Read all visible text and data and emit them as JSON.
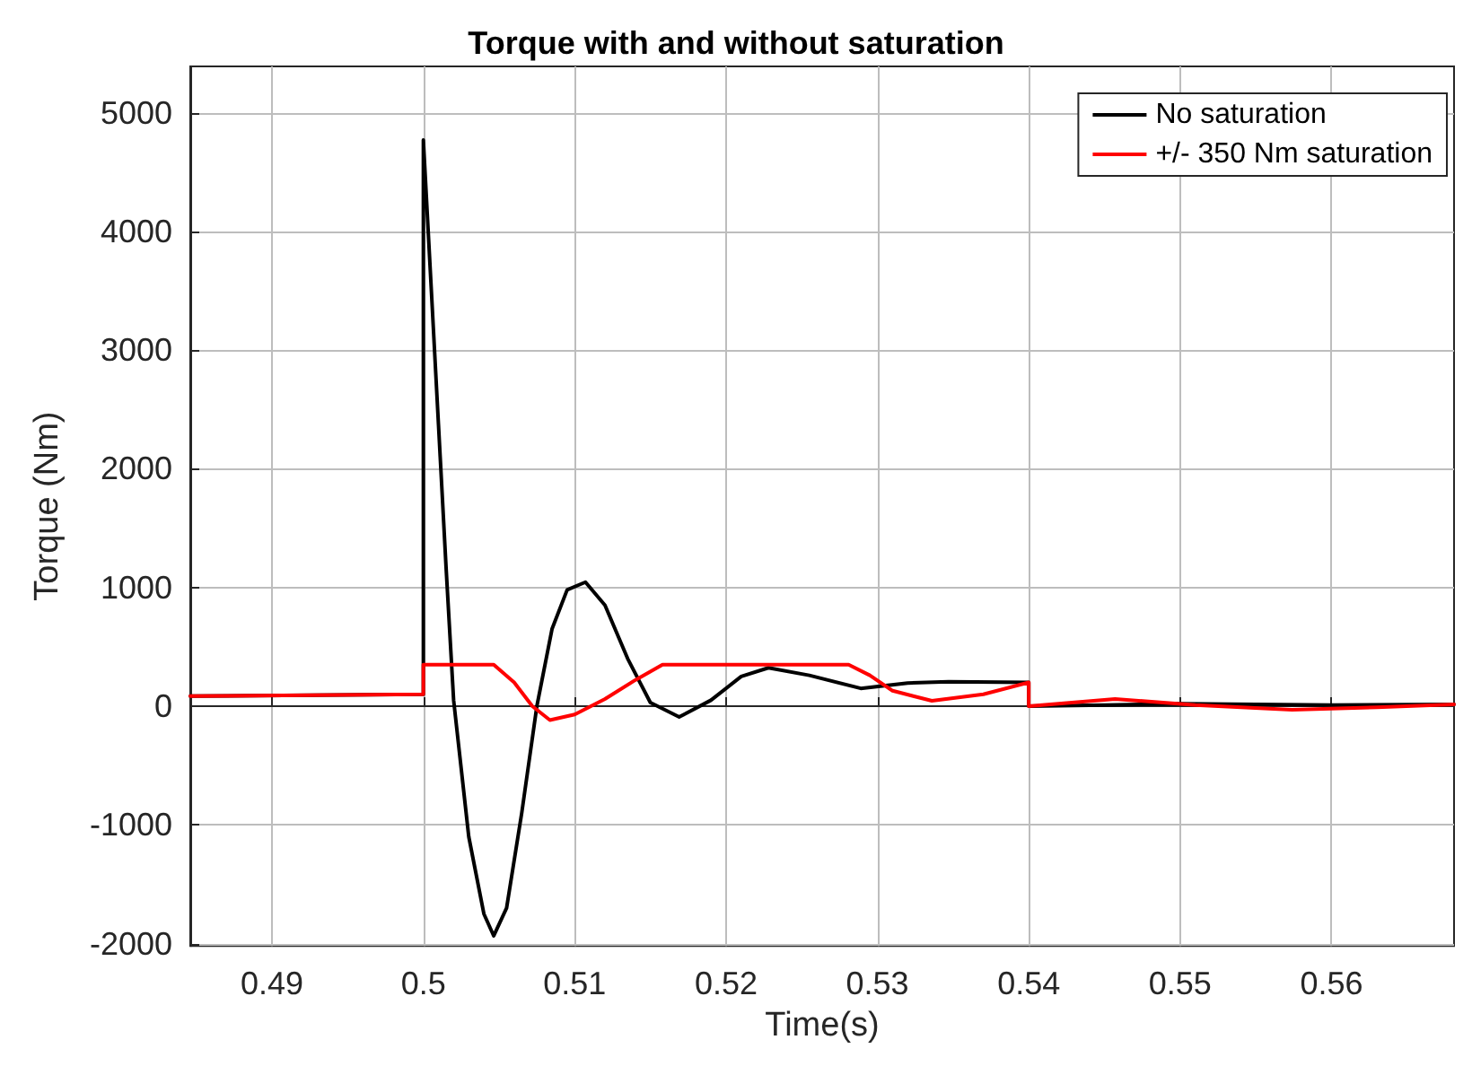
{
  "chart_data": {
    "type": "line",
    "title": "Torque with and without saturation",
    "xlabel": "Time(s)",
    "ylabel": "Torque (Nm)",
    "xlim": [
      0.4846,
      0.5681
    ],
    "ylim": [
      -2020,
      5390
    ],
    "xticks": [
      0.49,
      0.5,
      0.51,
      0.52,
      0.53,
      0.54,
      0.55,
      0.56
    ],
    "yticks": [
      -2000,
      -1000,
      0,
      1000,
      2000,
      3000,
      4000,
      5000
    ],
    "grid": true,
    "legend": "top right",
    "marker": "none",
    "line_style": "solid",
    "series": [
      {
        "name": "No saturation",
        "color": "#000000",
        "x": [
          0.4846,
          0.5,
          0.5,
          0.5005,
          0.501,
          0.5015,
          0.502,
          0.503,
          0.504,
          0.50465,
          0.5055,
          0.5065,
          0.5075,
          0.5085,
          0.5095,
          0.51071,
          0.512,
          0.5135,
          0.515,
          0.5169,
          0.519,
          0.521,
          0.5228,
          0.5255,
          0.5289,
          0.532,
          0.5347,
          0.54,
          0.54,
          0.545,
          0.55,
          0.555,
          0.56,
          0.5681
        ],
        "values": [
          85,
          100,
          4770,
          3570,
          2370,
          1170,
          50,
          -1100,
          -1750,
          -1935,
          -1700,
          -900,
          0,
          650,
          980,
          1045,
          850,
          400,
          30,
          -91,
          50,
          250,
          323,
          260,
          150,
          195,
          206,
          200,
          0,
          10,
          20,
          15,
          10,
          15
        ]
      },
      {
        "name": "+/- 350 Nm saturation",
        "color": "#ff0000",
        "x": [
          0.4846,
          0.5,
          0.5,
          0.50465,
          0.506,
          0.5072,
          0.50836,
          0.51,
          0.512,
          0.514,
          0.5158,
          0.5281,
          0.5295,
          0.531,
          0.5336,
          0.537,
          0.54,
          0.54,
          0.5457,
          0.551,
          0.5574,
          0.563,
          0.5681
        ],
        "values": [
          85,
          100,
          350,
          350,
          200,
          0,
          -117,
          -70,
          60,
          220,
          350,
          350,
          260,
          130,
          45,
          100,
          200,
          0,
          60,
          10,
          -30,
          -10,
          15
        ]
      }
    ]
  }
}
